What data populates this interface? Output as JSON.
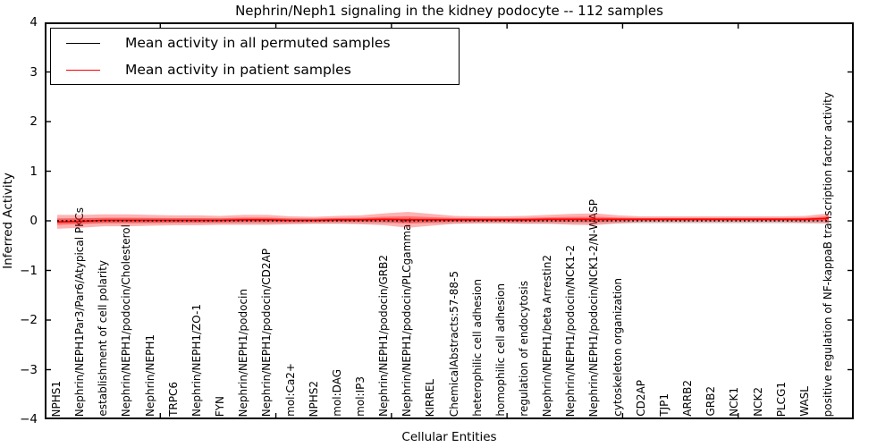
{
  "figure": {
    "background": "#ffffff",
    "frame_color": "#000000"
  },
  "chart_data": {
    "type": "line",
    "title": "Nephrin/Neph1 signaling in the kidney podocyte -- 112 samples",
    "xlabel": "Cellular Entities",
    "ylabel": "Inferred Activity",
    "ylim": [
      -4,
      4
    ],
    "yticks": [
      4,
      3,
      2,
      1,
      0,
      -1,
      -2,
      -3,
      -4
    ],
    "x_minor_tick_divisions": 7,
    "grid": false,
    "legend_position": "upper left",
    "categories": [
      "NPHS1",
      "Nephrin/NEPH1Par3/Par6/Atypical PKCs",
      "establishment of cell polarity",
      "Nephrin/NEPH1/podocin/Cholesterol",
      "Nephrin/NEPH1",
      "TRPC6",
      "Nephrin/NEPH1/ZO-1",
      "FYN",
      "Nephrin/NEPH1/podocin",
      "Nephrin/NEPH1/podocin/CD2AP",
      "mol:Ca2+",
      "NPHS2",
      "mol:DAG",
      "mol:IP3",
      "Nephrin/NEPH1/podocin/GRB2",
      "Nephrin/NEPH1/podocin/PLCgamma1",
      "KIRREL",
      "ChemicalAbstracts:57-88-5",
      "heterophilic cell adhesion",
      "homophilic cell adhesion",
      "regulation of endocytosis",
      "Nephrin/NEPH1/beta Arrestin2",
      "Nephrin/NEPH1/podocin/NCK1-2",
      "Nephrin/NEPH1/podocin/NCK1-2/N-WASP",
      "cytoskeleton organization",
      "CD2AP",
      "TJP1",
      "ARRB2",
      "GRB2",
      "NCK1",
      "NCK2",
      "PLCG1",
      "WASL",
      "positive regulation of NF-kappaB transcription factor activity"
    ],
    "series": [
      {
        "name": "Mean activity in all permuted samples",
        "color": "#000000",
        "line_style": "dotted",
        "band_color": "#999999",
        "values": [
          0,
          0,
          0,
          0,
          0,
          0,
          0,
          0,
          0,
          0,
          0,
          0,
          0,
          0,
          0,
          0,
          0,
          0,
          0,
          0,
          0,
          0,
          0,
          0,
          0,
          0,
          0,
          0,
          0,
          0,
          0,
          0,
          0,
          0
        ],
        "band_halfwidth": [
          0.055,
          0.055,
          0.055,
          0.055,
          0.055,
          0.055,
          0.055,
          0.055,
          0.055,
          0.055,
          0.055,
          0.055,
          0.055,
          0.055,
          0.055,
          0.055,
          0.055,
          0.055,
          0.055,
          0.055,
          0.055,
          0.055,
          0.055,
          0.055,
          0.055,
          0.055,
          0.055,
          0.055,
          0.055,
          0.055,
          0.055,
          0.055,
          0.055,
          0.055
        ]
      },
      {
        "name": "Mean activity in patient samples",
        "color": "#ff0000",
        "line_style": "solid",
        "band_color": "#ff0000",
        "values": [
          -0.02,
          -0.01,
          0.01,
          0.01,
          0.01,
          0.01,
          0.01,
          0.01,
          0.02,
          0.02,
          0.01,
          0.01,
          0.02,
          0.02,
          0.03,
          0.02,
          0.02,
          0.02,
          0.02,
          0.02,
          0.02,
          0.03,
          0.03,
          0.03,
          0.03,
          0.03,
          0.03,
          0.03,
          0.03,
          0.03,
          0.03,
          0.03,
          0.03,
          0.05
        ],
        "band_halfwidth": [
          0.14,
          0.13,
          0.12,
          0.12,
          0.11,
          0.1,
          0.1,
          0.09,
          0.1,
          0.1,
          0.08,
          0.07,
          0.08,
          0.09,
          0.12,
          0.16,
          0.12,
          0.08,
          0.07,
          0.07,
          0.08,
          0.09,
          0.11,
          0.12,
          0.08,
          0.06,
          0.06,
          0.06,
          0.06,
          0.06,
          0.06,
          0.06,
          0.07,
          0.1
        ]
      }
    ]
  }
}
